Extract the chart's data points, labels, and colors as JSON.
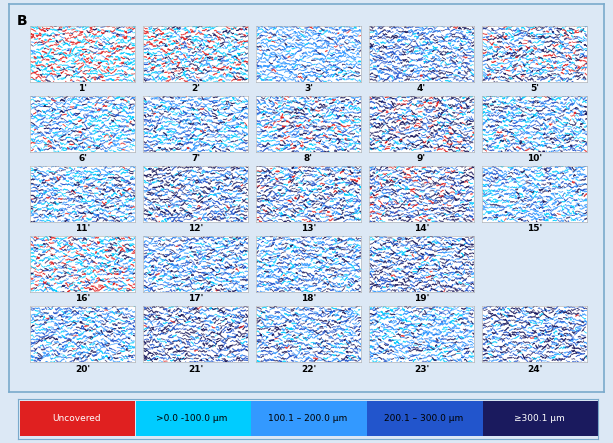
{
  "panel_label": "B",
  "n_cols": 5,
  "n_rows": 5,
  "labels": [
    "1'",
    "2'",
    "3'",
    "4'",
    "5'",
    "6'",
    "7'",
    "8'",
    "9'",
    "10'",
    "11'",
    "12'",
    "13'",
    "14'",
    "15'",
    "16'",
    "17'",
    "18'",
    "19'",
    "20'",
    "21'",
    "22'",
    "23'",
    "24'"
  ],
  "legend_labels": [
    "Uncovered",
    ">0.0 -100.0 μm",
    "100.1 – 200.0 μm",
    "200.1 – 300.0 μm",
    "≥300.1 μm"
  ],
  "legend_colors": [
    "#e02020",
    "#00ccff",
    "#3399ff",
    "#2255cc",
    "#1a1a5e"
  ],
  "bg_color": "#dce8f5",
  "outer_border_color": "#7aaacc",
  "panel_bg": "#ffffff",
  "label_fontsize": 6.5,
  "panel_label_fontsize": 10,
  "color_profiles": [
    [
      0.35,
      0.45,
      0.05,
      0.05,
      0.1
    ],
    [
      0.2,
      0.35,
      0.15,
      0.1,
      0.2
    ],
    [
      0.02,
      0.08,
      0.65,
      0.15,
      0.1
    ],
    [
      0.01,
      0.1,
      0.25,
      0.4,
      0.24
    ],
    [
      0.12,
      0.2,
      0.2,
      0.15,
      0.33
    ],
    [
      0.05,
      0.3,
      0.3,
      0.2,
      0.15
    ],
    [
      0.01,
      0.2,
      0.35,
      0.25,
      0.19
    ],
    [
      0.08,
      0.2,
      0.3,
      0.22,
      0.2
    ],
    [
      0.12,
      0.1,
      0.15,
      0.2,
      0.43
    ],
    [
      0.03,
      0.22,
      0.3,
      0.25,
      0.2
    ],
    [
      0.04,
      0.2,
      0.3,
      0.26,
      0.2
    ],
    [
      0.01,
      0.08,
      0.18,
      0.3,
      0.43
    ],
    [
      0.08,
      0.15,
      0.2,
      0.22,
      0.35
    ],
    [
      0.12,
      0.1,
      0.15,
      0.3,
      0.33
    ],
    [
      0.01,
      0.2,
      0.4,
      0.22,
      0.17
    ],
    [
      0.25,
      0.3,
      0.2,
      0.1,
      0.15
    ],
    [
      0.01,
      0.15,
      0.35,
      0.3,
      0.19
    ],
    [
      0.01,
      0.18,
      0.3,
      0.3,
      0.21
    ],
    [
      0.01,
      0.08,
      0.18,
      0.3,
      0.43
    ],
    [
      0.01,
      0.2,
      0.3,
      0.3,
      0.19
    ],
    [
      0.01,
      0.08,
      0.18,
      0.3,
      0.43
    ],
    [
      0.01,
      0.12,
      0.28,
      0.32,
      0.27
    ],
    [
      0.01,
      0.2,
      0.4,
      0.22,
      0.17
    ],
    [
      0.01,
      0.08,
      0.18,
      0.3,
      0.43
    ]
  ],
  "row4_ncols": 4,
  "legend_border_color": "#7aaacc"
}
